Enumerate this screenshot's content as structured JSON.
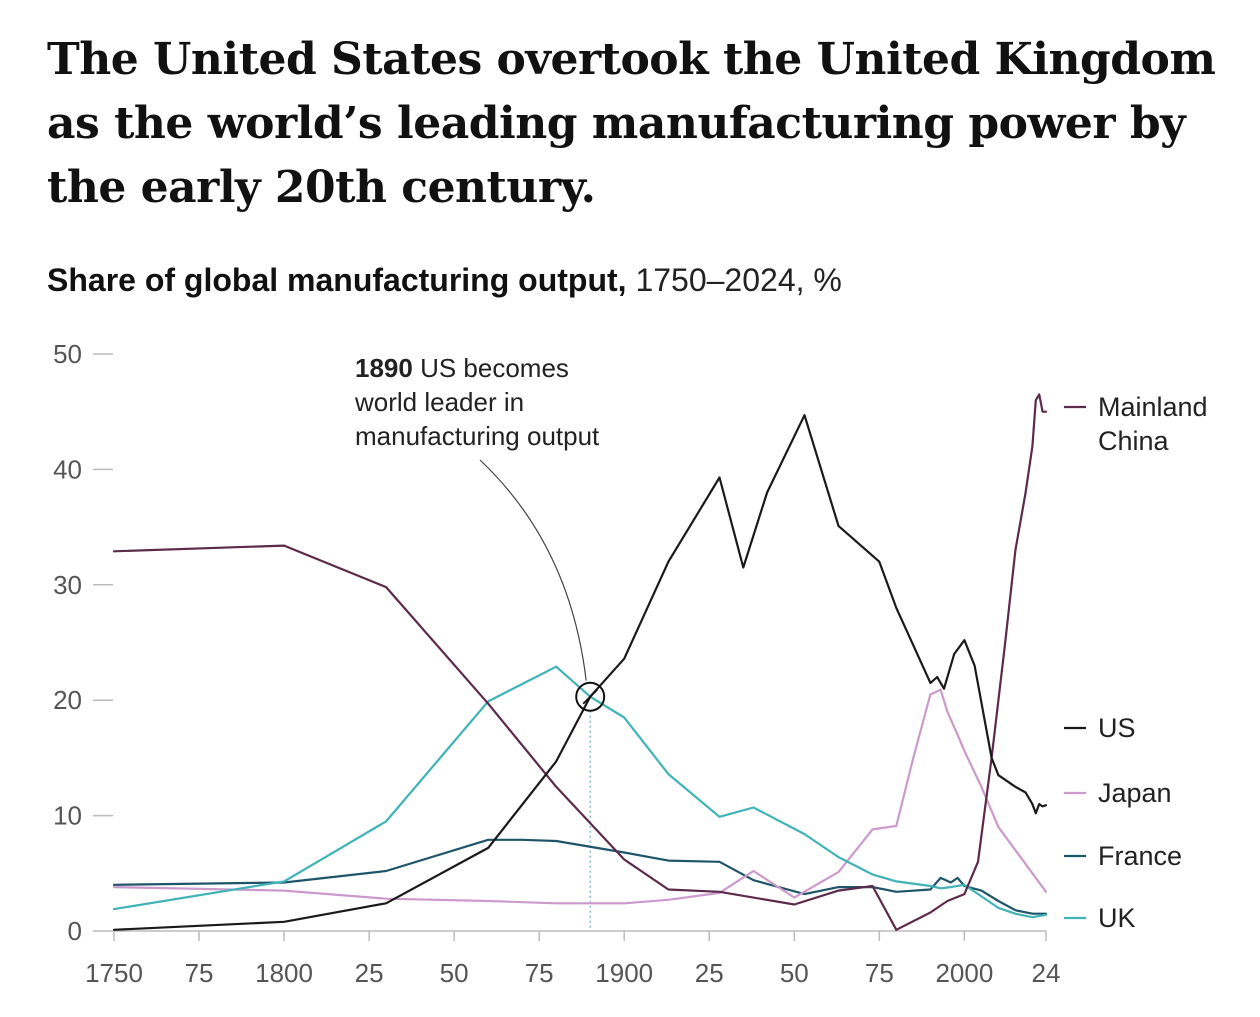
{
  "headline": "The United States overtook the United Kingdom as the world’s leading manufacturing power by the early 20th century.",
  "subtitle_bold": "Share of global manufacturing output,",
  "subtitle_rest": " 1750–2024, %",
  "colors": {
    "US": "#1a1a1a",
    "Mainland China": "#5c2a4a",
    "Japan": "#cc99cc",
    "France": "#1f5568",
    "UK": "#3fb3b8",
    "axis": "#bbbbbb",
    "tick_text": "#555555"
  },
  "annotation": {
    "year_bold": "1890",
    "line1_rest": " US becomes",
    "line2": "world leader in",
    "line3": "manufacturing output",
    "x": 1890,
    "y": 20.3
  },
  "chart_data": {
    "type": "line",
    "title": "Share of global manufacturing output, 1750–2024, %",
    "xlabel": "",
    "ylabel": "",
    "xlim": [
      1750,
      2024
    ],
    "ylim": [
      0,
      50
    ],
    "grid": false,
    "legend": "right, end-of-line labels",
    "x_tick_values": [
      1750,
      1775,
      1800,
      1825,
      1850,
      1875,
      1900,
      1925,
      1950,
      1975,
      2000,
      2024
    ],
    "x_tick_labels": [
      "1750",
      "75",
      "1800",
      "25",
      "50",
      "75",
      "1900",
      "25",
      "50",
      "75",
      "2000",
      "24"
    ],
    "y_tick_values": [
      0,
      10,
      20,
      30,
      40,
      50
    ],
    "y_tick_labels": [
      "0",
      "10",
      "20",
      "30",
      "40",
      "50"
    ],
    "series": [
      {
        "name": "Mainland China",
        "x": [
          1750,
          1800,
          1830,
          1860,
          1880,
          1900,
          1913,
          1928,
          1950,
          1963,
          1973,
          1980,
          1990,
          1995,
          2000,
          2004,
          2008,
          2012,
          2015,
          2018,
          2020,
          2021,
          2022,
          2023,
          2024
        ],
        "y": [
          32.9,
          33.4,
          29.8,
          19.7,
          12.5,
          6.2,
          3.6,
          3.4,
          2.3,
          3.5,
          3.9,
          0.1,
          1.6,
          2.6,
          3.2,
          6.0,
          15.0,
          25.0,
          33.0,
          38.0,
          42.0,
          46.0,
          46.5,
          45.0,
          45.0
        ]
      },
      {
        "name": "US",
        "x": [
          1750,
          1800,
          1830,
          1860,
          1880,
          1890,
          1900,
          1913,
          1928,
          1935,
          1942,
          1953,
          1963,
          1975,
          1980,
          1990,
          1992,
          1994,
          1997,
          2000,
          2003,
          2008,
          2010,
          2015,
          2018,
          2020,
          2021,
          2022,
          2023,
          2024
        ],
        "y": [
          0.1,
          0.8,
          2.4,
          7.2,
          14.7,
          20.3,
          23.6,
          32.0,
          39.3,
          31.5,
          38.0,
          44.7,
          35.1,
          32.0,
          28.0,
          21.5,
          22.0,
          21.0,
          24.0,
          25.2,
          23.0,
          15.0,
          13.5,
          12.5,
          12.0,
          11.0,
          10.2,
          11.0,
          10.8,
          10.9
        ]
      },
      {
        "name": "Japan",
        "x": [
          1750,
          1800,
          1830,
          1860,
          1880,
          1900,
          1913,
          1928,
          1938,
          1950,
          1963,
          1973,
          1980,
          1985,
          1990,
          1993,
          1995,
          1998,
          2000,
          2005,
          2010,
          2015,
          2020,
          2024
        ],
        "y": [
          3.8,
          3.5,
          2.8,
          2.6,
          2.4,
          2.4,
          2.7,
          3.3,
          5.2,
          2.9,
          5.1,
          8.8,
          9.1,
          15.0,
          20.5,
          20.9,
          19.0,
          17.0,
          15.6,
          12.5,
          9.0,
          7.0,
          5.0,
          3.4
        ]
      },
      {
        "name": "France",
        "x": [
          1750,
          1800,
          1830,
          1860,
          1870,
          1880,
          1900,
          1913,
          1928,
          1938,
          1953,
          1963,
          1973,
          1980,
          1990,
          1993,
          1996,
          1998,
          2000,
          2005,
          2010,
          2015,
          2020,
          2024
        ],
        "y": [
          4.0,
          4.2,
          5.2,
          7.9,
          7.9,
          7.8,
          6.8,
          6.1,
          6.0,
          4.4,
          3.2,
          3.8,
          3.8,
          3.4,
          3.6,
          4.6,
          4.2,
          4.6,
          3.9,
          3.5,
          2.6,
          1.8,
          1.5,
          1.5
        ]
      },
      {
        "name": "UK",
        "x": [
          1750,
          1800,
          1830,
          1860,
          1880,
          1890,
          1900,
          1913,
          1928,
          1938,
          1953,
          1963,
          1973,
          1980,
          1990,
          1993,
          1996,
          2000,
          2005,
          2010,
          2015,
          2020,
          2024
        ],
        "y": [
          1.9,
          4.3,
          9.5,
          19.9,
          22.9,
          20.3,
          18.5,
          13.6,
          9.9,
          10.7,
          8.4,
          6.4,
          4.9,
          4.3,
          3.9,
          3.7,
          3.8,
          4.0,
          3.0,
          2.0,
          1.5,
          1.2,
          1.4
        ]
      }
    ]
  }
}
